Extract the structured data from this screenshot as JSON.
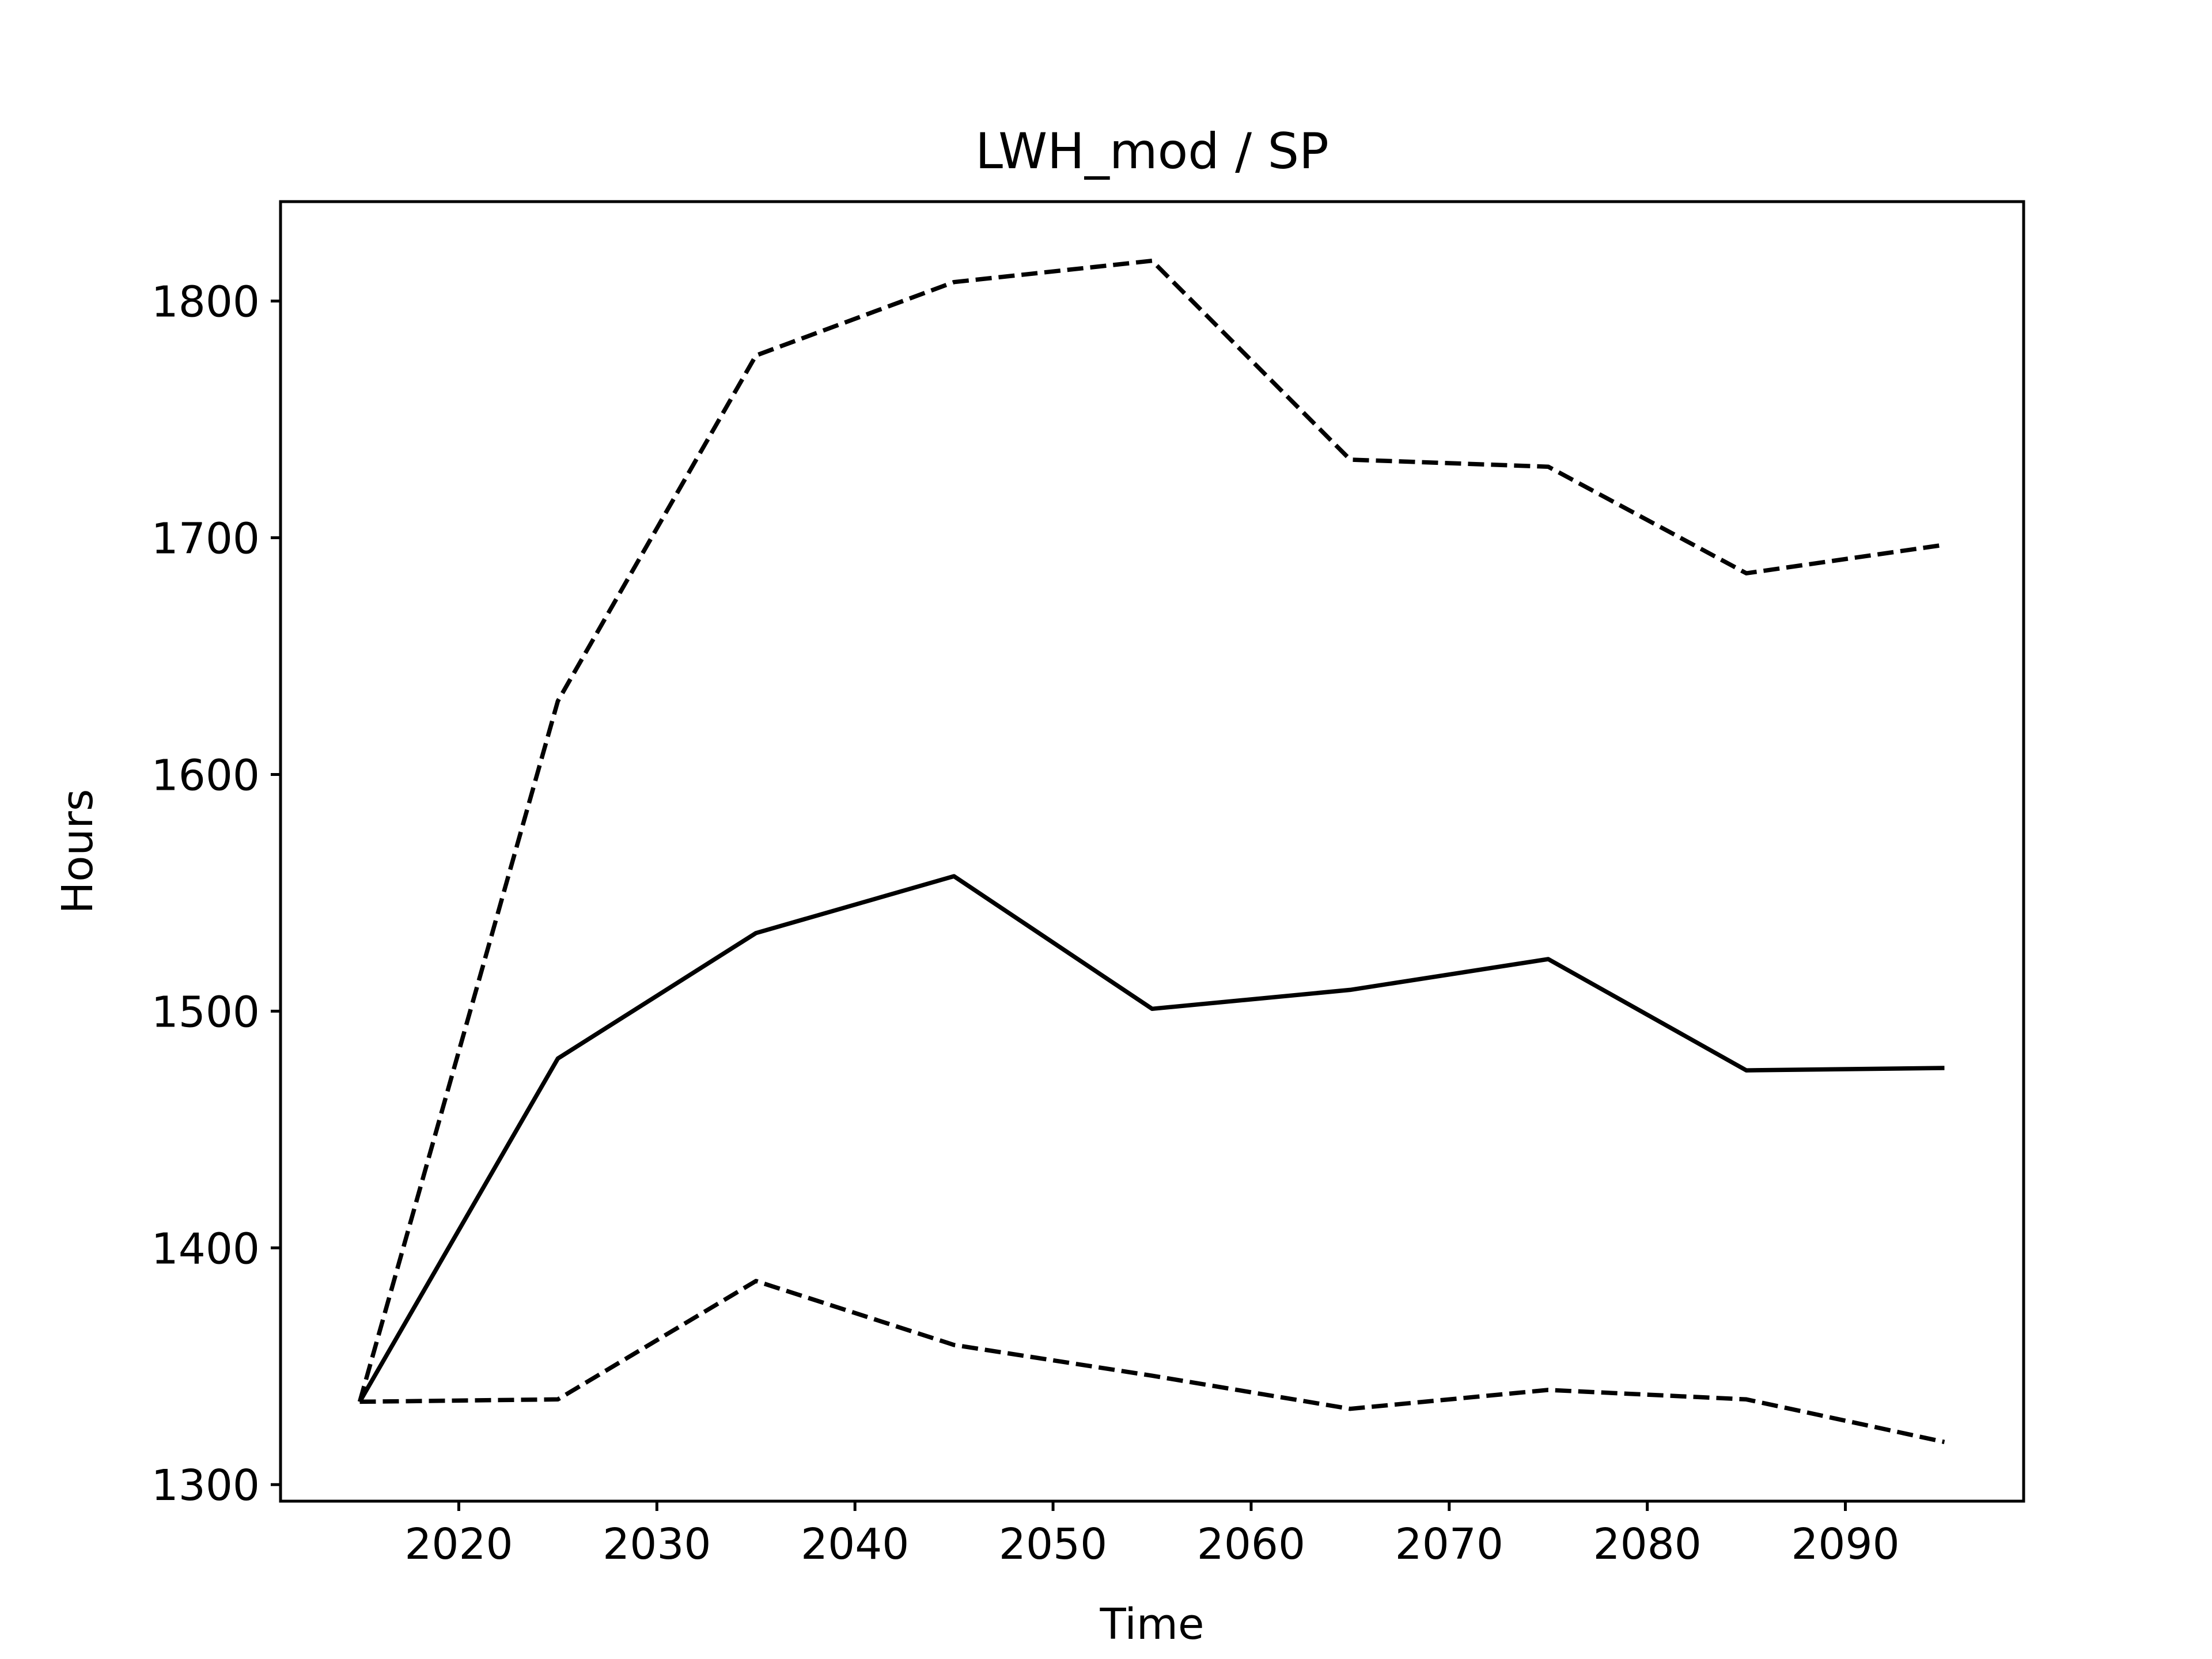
{
  "chart_data": {
    "type": "line",
    "title": "LWH_mod / SP",
    "xlabel": "Time",
    "ylabel": "Hours",
    "xlim": [
      2011,
      2099
    ],
    "ylim": [
      1293,
      1842
    ],
    "xticks": [
      2020,
      2030,
      2040,
      2050,
      2060,
      2070,
      2080,
      2090
    ],
    "yticks": [
      1300,
      1400,
      1500,
      1600,
      1700,
      1800
    ],
    "grid": false,
    "x": [
      2015,
      2025,
      2035,
      2045,
      2055,
      2065,
      2075,
      2085,
      2095
    ],
    "series": [
      {
        "style": "solid",
        "color": "#000000",
        "values": [
          1335,
          1480,
          1533,
          1557,
          1501,
          1509,
          1522,
          1475,
          1476
        ]
      },
      {
        "style": "dashed",
        "color": "#000000",
        "values": [
          1335,
          1631,
          1777,
          1808,
          1817,
          1733,
          1730,
          1685,
          1697
        ]
      },
      {
        "style": "dashed",
        "color": "#000000",
        "values": [
          1335,
          1336,
          1386,
          1359,
          1346,
          1332,
          1340,
          1336,
          1318
        ]
      }
    ]
  }
}
